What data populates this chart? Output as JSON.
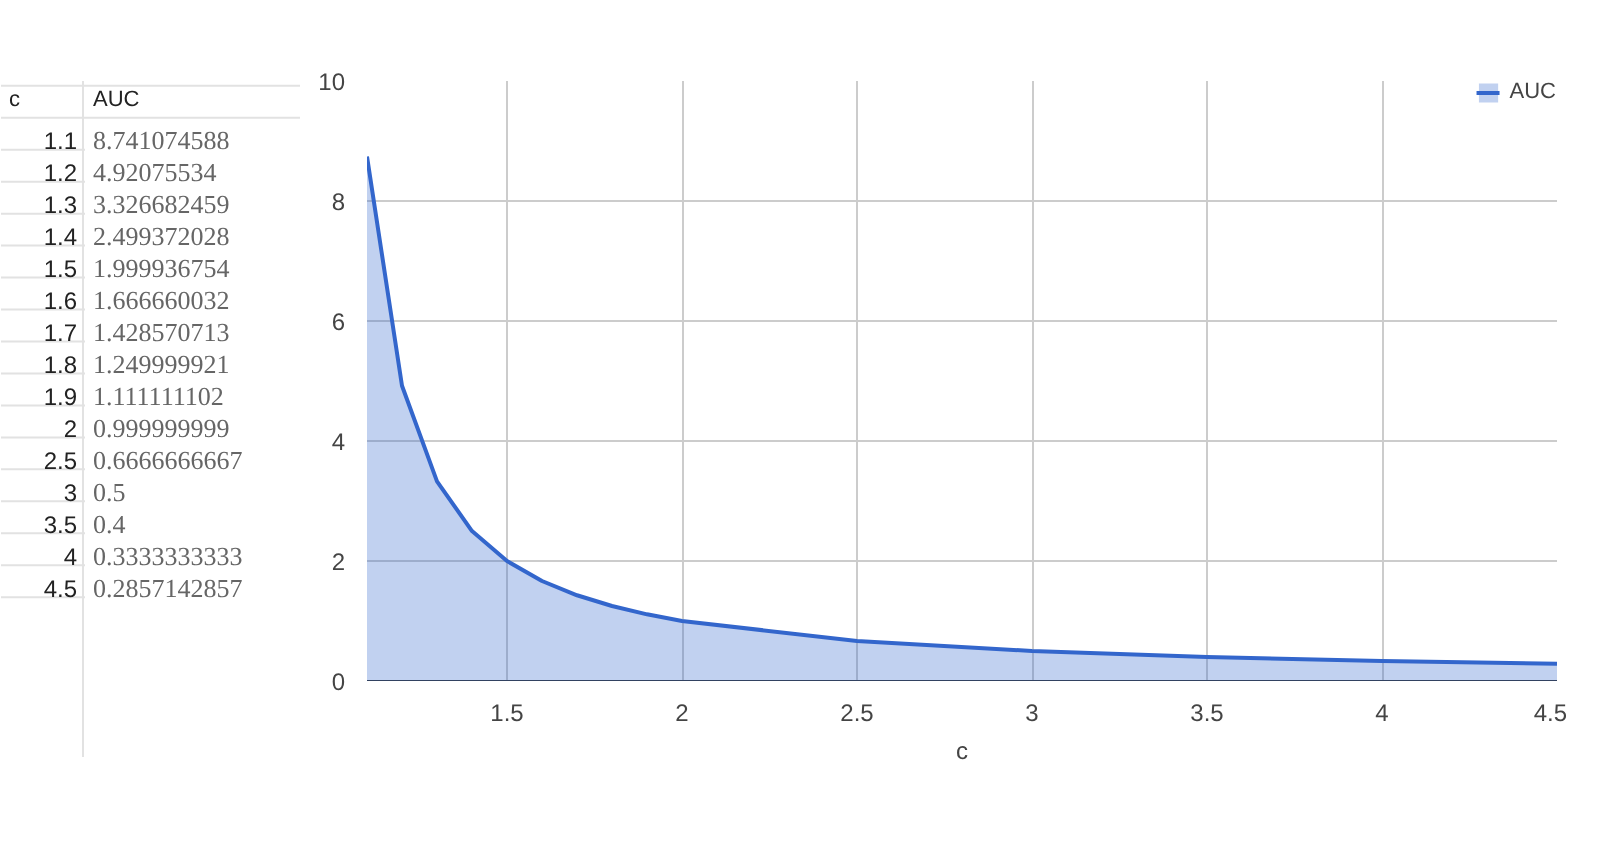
{
  "chart_data": [
    {
      "type": "heatmap",
      "ylabel": "c",
      "categories": [
        "AUC"
      ],
      "y_categories": [
        "1.1",
        "1.2",
        "1.3",
        "1.4",
        "1.5",
        "1.6",
        "1.7",
        "1.8",
        "1.9",
        "2",
        "2.5",
        "3",
        "3.5",
        "4",
        "4.5"
      ],
      "cells": [
        [
          8.741074588
        ],
        [
          4.92075534
        ],
        [
          3.326682459
        ],
        [
          2.499372028
        ],
        [
          1.999936754
        ],
        [
          1.666660032
        ],
        [
          1.428570713
        ],
        [
          1.249999921
        ],
        [
          1.111111102
        ],
        [
          0.999999999
        ],
        [
          0.6666666667
        ],
        [
          0.5
        ],
        [
          0.4
        ],
        [
          0.3333333333
        ],
        [
          0.2857142857
        ]
      ],
      "cell_labels": [
        [
          "8.741074588"
        ],
        [
          "4.92075534"
        ],
        [
          "3.326682459"
        ],
        [
          "2.499372028"
        ],
        [
          "1.999936754"
        ],
        [
          "1.666660032"
        ],
        [
          "1.428570713"
        ],
        [
          "1.249999921"
        ],
        [
          "1.111111102"
        ],
        [
          "0.999999999"
        ],
        [
          "0.6666666667"
        ],
        [
          "0.5"
        ],
        [
          "0.4"
        ],
        [
          "0.3333333333"
        ],
        [
          "0.2857142857"
        ]
      ]
    },
    {
      "type": "area",
      "xlabel": "c",
      "x": [
        1.1,
        1.2,
        1.3,
        1.4,
        1.5,
        1.6,
        1.7,
        1.8,
        1.9,
        2,
        2.5,
        3,
        3.5,
        4,
        4.5
      ],
      "series": [
        {
          "name": "AUC",
          "color": "#3366cc",
          "values": [
            8.741074588,
            4.92075534,
            3.326682459,
            2.499372028,
            1.999936754,
            1.666660032,
            1.428570713,
            1.249999921,
            1.111111102,
            0.999999999,
            0.6666666667,
            0.5,
            0.4,
            0.3333333333,
            0.2857142857
          ]
        }
      ],
      "xlim": [
        1.1,
        4.5
      ],
      "xticks": [
        1.5,
        2,
        2.5,
        3,
        3.5,
        4,
        4.5
      ],
      "ylim": [
        0,
        10
      ],
      "yticks": [
        0,
        2,
        4,
        6,
        8,
        10
      ],
      "grid": true,
      "legend": "top right"
    }
  ]
}
